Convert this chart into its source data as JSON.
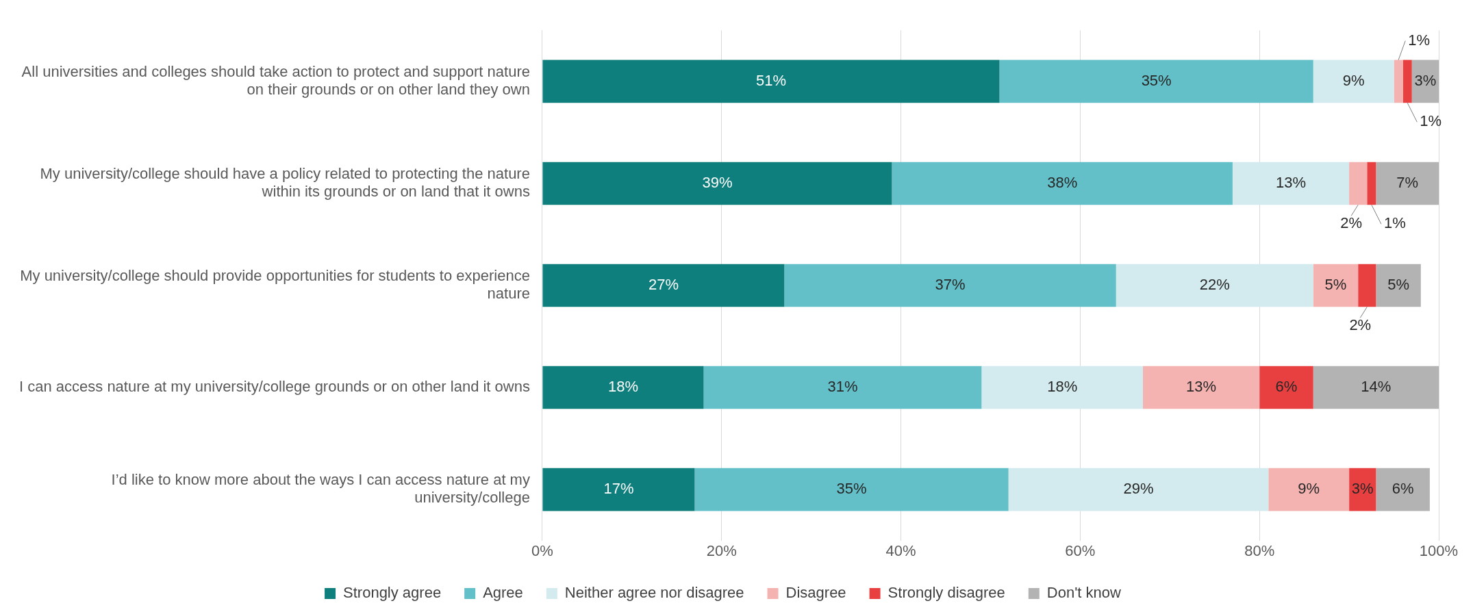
{
  "chart_data": {
    "type": "bar",
    "orientation": "horizontal",
    "stacked": true,
    "categories": [
      "All universities and colleges should take action to protect and support nature on their grounds or on other land they own",
      "My university/college should have a policy related to protecting the nature within its grounds or on land that it owns",
      "My university/college should provide opportunities for students to experience nature",
      "I can access nature at my university/college grounds or on other land it owns",
      "I’d like to know more about the ways I can access nature at my university/college"
    ],
    "series": [
      {
        "name": "Strongly agree",
        "color": "#0e7f7d",
        "values": [
          51,
          39,
          27,
          18,
          17
        ],
        "value_labels": [
          "51%",
          "39%",
          "27%",
          "18%",
          "17%"
        ]
      },
      {
        "name": "Agree",
        "color": "#64c0c8",
        "values": [
          35,
          38,
          37,
          31,
          35
        ],
        "value_labels": [
          "35%",
          "38%",
          "37%",
          "31%",
          "35%"
        ]
      },
      {
        "name": "Neither agree nor disagree",
        "color": "#d3ebee",
        "values": [
          9,
          13,
          22,
          18,
          29
        ],
        "value_labels": [
          "9%",
          "13%",
          "22%",
          "18%",
          "29%"
        ]
      },
      {
        "name": "Disagree",
        "color": "#f4b3b0",
        "values": [
          1,
          2,
          5,
          13,
          9
        ],
        "value_labels": [
          "1%",
          "2%",
          "5%",
          "13%",
          "9%"
        ]
      },
      {
        "name": "Strongly disagree",
        "color": "#e84040",
        "values": [
          1,
          1,
          2,
          6,
          3
        ],
        "value_labels": [
          "1%",
          "1%",
          "2%",
          "6%",
          "3%"
        ]
      },
      {
        "name": "Don't know",
        "color": "#b3b3b3",
        "values": [
          3,
          7,
          5,
          14,
          6
        ],
        "value_labels": [
          "3%",
          "7%",
          "5%",
          "14%",
          "6%"
        ]
      }
    ],
    "xlim": [
      0,
      100
    ],
    "xticks": [
      {
        "value": 0,
        "label": "0%"
      },
      {
        "value": 20,
        "label": "20%"
      },
      {
        "value": 40,
        "label": "40%"
      },
      {
        "value": 60,
        "label": "60%"
      },
      {
        "value": 80,
        "label": "80%"
      },
      {
        "value": 100,
        "label": "100%"
      }
    ],
    "grid": "x",
    "legend": "bottom"
  }
}
